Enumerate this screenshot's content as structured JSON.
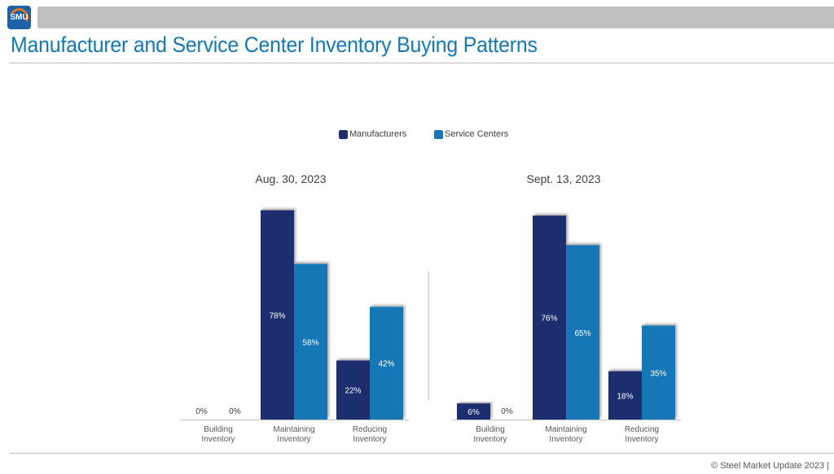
{
  "header": {
    "logo_text": "SMU",
    "title": "Manufacturer and Service Center Inventory Buying Patterns"
  },
  "legend": [
    {
      "name": "Manufacturers",
      "color": "#1f2d6e"
    },
    {
      "name": "Service Centers",
      "color": "#1577b6"
    }
  ],
  "chart_data": [
    {
      "type": "bar",
      "title": "Aug. 30, 2023",
      "categories": [
        [
          "Building",
          "Inventory"
        ],
        [
          "Maintaining",
          "Inventory"
        ],
        [
          "Reducing",
          "Inventory"
        ]
      ],
      "series": [
        {
          "name": "Manufacturers",
          "values": [
            0,
            78,
            22
          ],
          "labels": [
            "0%",
            "78%",
            "22%"
          ]
        },
        {
          "name": "Service Centers",
          "values": [
            0,
            58,
            42
          ],
          "labels": [
            "0%",
            "58%",
            "42%"
          ]
        }
      ],
      "ylim": [
        0,
        80
      ],
      "grid": false
    },
    {
      "type": "bar",
      "title": "Sept. 13, 2023",
      "categories": [
        [
          "Building",
          "Inventory"
        ],
        [
          "Maintaining",
          "Inventory"
        ],
        [
          "Reducing",
          "Inventory"
        ]
      ],
      "series": [
        {
          "name": "Manufacturers",
          "values": [
            6,
            76,
            18
          ],
          "labels": [
            "6%",
            "76%",
            "18%"
          ]
        },
        {
          "name": "Service Centers",
          "values": [
            0,
            65,
            35
          ],
          "labels": [
            "0%",
            "65%",
            "35%"
          ]
        }
      ],
      "ylim": [
        0,
        80
      ],
      "grid": false
    }
  ],
  "footer": {
    "copyright": "© Steel Market Update 2023 |"
  }
}
